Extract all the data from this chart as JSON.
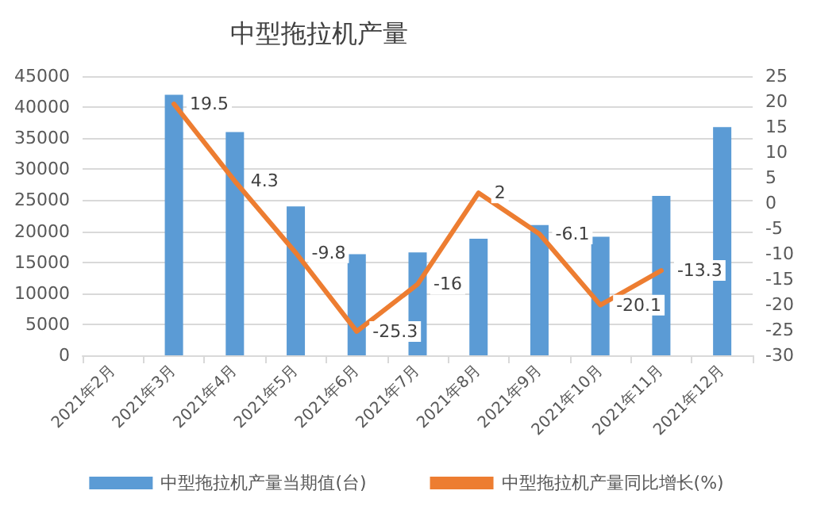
{
  "chart_data": {
    "type": "bar",
    "title": "中型拖拉机产量",
    "categories": [
      "2021年2月",
      "2021年3月",
      "2021年4月",
      "2021年5月",
      "2021年6月",
      "2021年7月",
      "2021年8月",
      "2021年9月",
      "2021年10月",
      "2021年11月",
      "2021年12月"
    ],
    "series": [
      {
        "name": "中型拖拉机产量当期值(台)",
        "color": "#5b9bd5",
        "values": [
          null,
          42000,
          36000,
          24000,
          16300,
          16600,
          18800,
          21000,
          19100,
          25700,
          36800
        ]
      },
      {
        "name": "中型拖拉机产量同比增长(%)",
        "type": "line",
        "axis": "y2",
        "color": "#ed7d31",
        "values": [
          null,
          19.5,
          4.3,
          -9.8,
          -25.3,
          -16,
          2,
          -6.1,
          -20.1,
          -13.3,
          null
        ],
        "value_labels": [
          null,
          "19.5",
          "4.3",
          "-9.8",
          "-25.3",
          "-16",
          "2",
          "-6.1",
          "-20.1",
          "-13.3",
          null
        ]
      }
    ],
    "ylim": [
      0,
      45000
    ],
    "yticks": [
      0,
      5000,
      10000,
      15000,
      20000,
      25000,
      30000,
      35000,
      40000,
      45000
    ],
    "y2lim": [
      -30,
      25
    ],
    "y2ticks": [
      -30,
      -25,
      -20,
      -15,
      -10,
      -5,
      0,
      5,
      10,
      15,
      20,
      25
    ],
    "grid": "y",
    "legend": "bottom",
    "marker": "none",
    "line_style": "solid"
  }
}
